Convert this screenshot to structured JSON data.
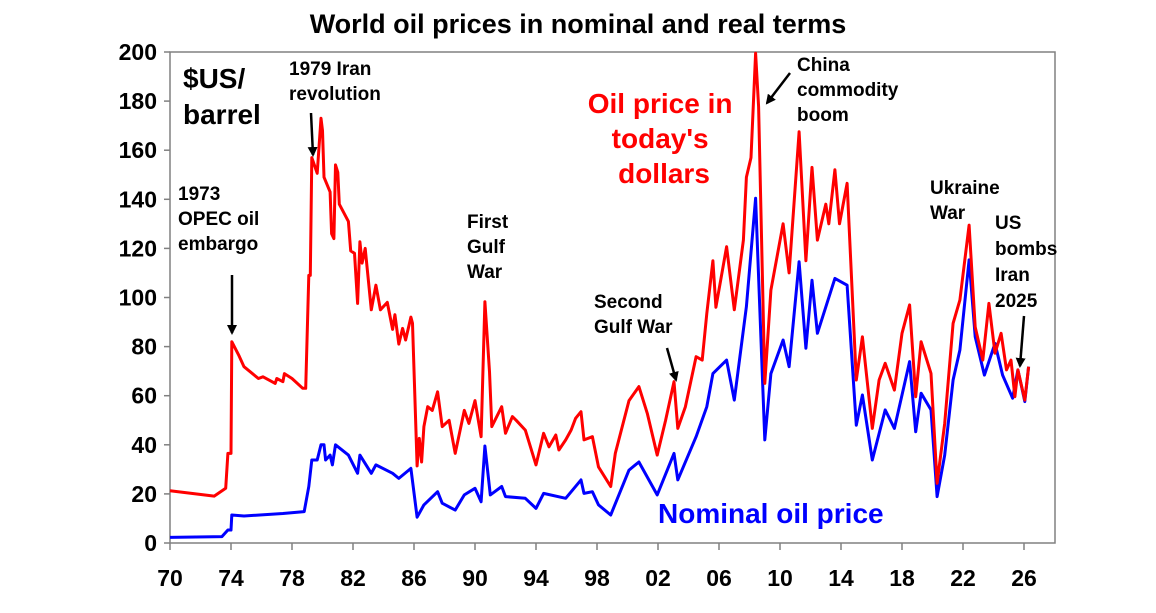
{
  "chart_data": {
    "type": "line",
    "title": "World oil prices in nominal and real terms",
    "ylabel": "$US/ barrel",
    "ylabel_lines": [
      "$US/",
      "barrel"
    ],
    "xlim": [
      1970,
      2028
    ],
    "ylim": [
      0,
      200
    ],
    "grid": false,
    "x_ticks": [
      1970,
      1974,
      1978,
      1982,
      1986,
      1990,
      1994,
      1998,
      2002,
      2006,
      2010,
      2014,
      2018,
      2022,
      2026
    ],
    "x_tick_labels": [
      "70",
      "74",
      "78",
      "82",
      "86",
      "90",
      "94",
      "98",
      "02",
      "06",
      "10",
      "14",
      "18",
      "22",
      "26"
    ],
    "y_ticks": [
      0,
      20,
      40,
      60,
      80,
      100,
      120,
      140,
      160,
      180,
      200
    ],
    "y_tick_labels": [
      "0",
      "20",
      "40",
      "60",
      "80",
      "100",
      "120",
      "140",
      "160",
      "180",
      "200"
    ],
    "series": [
      {
        "name": "Oil price in today's dollars",
        "label_lines": [
          "Oil price in",
          "today's",
          "dollars"
        ],
        "color": "#ff0000",
        "points": [
          [
            1970.0,
            21.3
          ],
          [
            1972.9,
            19.1
          ],
          [
            1973.65,
            22.3
          ],
          [
            1973.8,
            36.5
          ],
          [
            1974.0,
            36.5
          ],
          [
            1974.05,
            82
          ],
          [
            1974.5,
            76.6
          ],
          [
            1974.85,
            71.8
          ],
          [
            1975.8,
            67
          ],
          [
            1976.1,
            67.7
          ],
          [
            1976.9,
            65
          ],
          [
            1977.0,
            67
          ],
          [
            1977.4,
            65.7
          ],
          [
            1977.5,
            69
          ],
          [
            1978.0,
            67
          ],
          [
            1978.7,
            63
          ],
          [
            1978.9,
            63
          ],
          [
            1979.1,
            109
          ],
          [
            1979.2,
            109
          ],
          [
            1979.3,
            157
          ],
          [
            1979.65,
            150.6
          ],
          [
            1979.9,
            173
          ],
          [
            1980.0,
            168
          ],
          [
            1980.1,
            149
          ],
          [
            1980.5,
            143
          ],
          [
            1980.6,
            126
          ],
          [
            1980.75,
            124
          ],
          [
            1980.85,
            154
          ],
          [
            1981.0,
            151
          ],
          [
            1981.1,
            138
          ],
          [
            1981.7,
            131
          ],
          [
            1981.85,
            119
          ],
          [
            1982.1,
            118
          ],
          [
            1982.3,
            97.6
          ],
          [
            1982.45,
            122.7
          ],
          [
            1982.6,
            114
          ],
          [
            1982.8,
            120
          ],
          [
            1983.2,
            95
          ],
          [
            1983.5,
            105
          ],
          [
            1983.8,
            95
          ],
          [
            1984.25,
            98
          ],
          [
            1984.6,
            87
          ],
          [
            1984.75,
            93
          ],
          [
            1985.0,
            81
          ],
          [
            1985.25,
            87.4
          ],
          [
            1985.45,
            82.7
          ],
          [
            1985.8,
            92
          ],
          [
            1985.9,
            89.5
          ],
          [
            1986.2,
            31.4
          ],
          [
            1986.35,
            42.6
          ],
          [
            1986.5,
            33
          ],
          [
            1986.65,
            47.4
          ],
          [
            1986.9,
            55.5
          ],
          [
            1987.2,
            54
          ],
          [
            1987.55,
            61.6
          ],
          [
            1987.85,
            47.4
          ],
          [
            1988.3,
            50
          ],
          [
            1988.7,
            36.5
          ],
          [
            1989.05,
            46.7
          ],
          [
            1989.3,
            54
          ],
          [
            1989.6,
            48.7
          ],
          [
            1990.0,
            58
          ],
          [
            1990.4,
            43.3
          ],
          [
            1990.65,
            98.3
          ],
          [
            1990.95,
            69.8
          ],
          [
            1991.1,
            47.4
          ],
          [
            1991.75,
            55.5
          ],
          [
            1992.0,
            44.7
          ],
          [
            1992.45,
            51.5
          ],
          [
            1992.7,
            50
          ],
          [
            1993.3,
            46
          ],
          [
            1994.0,
            31.8
          ],
          [
            1994.5,
            44.7
          ],
          [
            1994.85,
            39.2
          ],
          [
            1995.3,
            44
          ],
          [
            1995.5,
            37.9
          ],
          [
            1995.95,
            42
          ],
          [
            1996.3,
            46
          ],
          [
            1996.6,
            50.8
          ],
          [
            1996.95,
            53.5
          ],
          [
            1997.15,
            42
          ],
          [
            1997.7,
            43.3
          ],
          [
            1998.1,
            31
          ],
          [
            1998.9,
            23
          ],
          [
            1999.2,
            36.5
          ],
          [
            2000.1,
            58
          ],
          [
            2000.75,
            63.7
          ],
          [
            2001.3,
            52.8
          ],
          [
            2001.95,
            35.8
          ],
          [
            2002.5,
            50
          ],
          [
            2003.05,
            65.7
          ],
          [
            2003.3,
            46.7
          ],
          [
            2003.8,
            55.5
          ],
          [
            2004.5,
            75.9
          ],
          [
            2004.9,
            74.5
          ],
          [
            2005.2,
            93.5
          ],
          [
            2005.6,
            115
          ],
          [
            2005.8,
            96
          ],
          [
            2006.5,
            120.7
          ],
          [
            2007.0,
            95
          ],
          [
            2007.6,
            123.4
          ],
          [
            2007.8,
            149
          ],
          [
            2008.1,
            157
          ],
          [
            2008.4,
            199.5
          ],
          [
            2008.6,
            177.7
          ],
          [
            2009.0,
            65
          ],
          [
            2009.4,
            103
          ],
          [
            2010.2,
            130
          ],
          [
            2010.6,
            110
          ],
          [
            2011.25,
            167.5
          ],
          [
            2011.7,
            115
          ],
          [
            2012.1,
            153
          ],
          [
            2012.45,
            123.4
          ],
          [
            2013.0,
            138
          ],
          [
            2013.2,
            130
          ],
          [
            2013.6,
            152
          ],
          [
            2013.9,
            130
          ],
          [
            2014.4,
            146.5
          ],
          [
            2015.0,
            66.4
          ],
          [
            2015.4,
            84
          ],
          [
            2016.05,
            46.7
          ],
          [
            2016.5,
            66.4
          ],
          [
            2016.9,
            73.2
          ],
          [
            2017.5,
            62.3
          ],
          [
            2018.0,
            85.4
          ],
          [
            2018.5,
            97
          ],
          [
            2018.9,
            59.6
          ],
          [
            2019.25,
            82
          ],
          [
            2019.9,
            69.1
          ],
          [
            2020.3,
            24.3
          ],
          [
            2020.8,
            48.7
          ],
          [
            2021.35,
            89.5
          ],
          [
            2021.8,
            99
          ],
          [
            2022.4,
            129.5
          ],
          [
            2022.8,
            88
          ],
          [
            2023.3,
            74.5
          ],
          [
            2023.7,
            97.6
          ],
          [
            2024.1,
            77.3
          ],
          [
            2024.5,
            85.4
          ],
          [
            2024.85,
            70.5
          ],
          [
            2025.15,
            74.5
          ],
          [
            2025.4,
            59.6
          ],
          [
            2025.6,
            70.5
          ],
          [
            2026.05,
            58.2
          ],
          [
            2026.3,
            71.8
          ]
        ]
      },
      {
        "name": "Nominal oil price",
        "color": "#0000ff",
        "points": [
          [
            1970.0,
            2.3
          ],
          [
            1973.4,
            2.6
          ],
          [
            1973.8,
            5.3
          ],
          [
            1974.0,
            5.3
          ],
          [
            1974.05,
            11.4
          ],
          [
            1974.85,
            11
          ],
          [
            1977.4,
            12
          ],
          [
            1978.8,
            12.8
          ],
          [
            1979.1,
            23
          ],
          [
            1979.3,
            33.8
          ],
          [
            1979.65,
            33.8
          ],
          [
            1979.9,
            40
          ],
          [
            1980.1,
            40
          ],
          [
            1980.2,
            33.8
          ],
          [
            1980.5,
            35.8
          ],
          [
            1980.65,
            31.8
          ],
          [
            1980.85,
            40
          ],
          [
            1981.7,
            35.8
          ],
          [
            1982.3,
            28.4
          ],
          [
            1982.45,
            35.8
          ],
          [
            1983.2,
            28.4
          ],
          [
            1983.5,
            31.8
          ],
          [
            1984.6,
            28.4
          ],
          [
            1985.0,
            26.3
          ],
          [
            1985.8,
            30.4
          ],
          [
            1986.2,
            10.5
          ],
          [
            1986.65,
            15.5
          ],
          [
            1987.55,
            20.9
          ],
          [
            1987.85,
            16.2
          ],
          [
            1988.7,
            13.4
          ],
          [
            1989.3,
            19.6
          ],
          [
            1990.0,
            22.3
          ],
          [
            1990.4,
            16.8
          ],
          [
            1990.65,
            39.5
          ],
          [
            1991.0,
            19.6
          ],
          [
            1991.75,
            23
          ],
          [
            1992.0,
            18.9
          ],
          [
            1993.3,
            18.2
          ],
          [
            1994.0,
            14.1
          ],
          [
            1994.5,
            20.2
          ],
          [
            1995.95,
            18.2
          ],
          [
            1996.95,
            25.7
          ],
          [
            1997.15,
            20.2
          ],
          [
            1997.7,
            20.9
          ],
          [
            1998.1,
            15.5
          ],
          [
            1998.9,
            11.4
          ],
          [
            2000.1,
            29.7
          ],
          [
            2000.75,
            33
          ],
          [
            2001.95,
            19.6
          ],
          [
            2003.05,
            36.5
          ],
          [
            2003.3,
            25.7
          ],
          [
            2004.5,
            43.3
          ],
          [
            2005.2,
            55.5
          ],
          [
            2005.6,
            69
          ],
          [
            2006.5,
            74.5
          ],
          [
            2007.0,
            58.2
          ],
          [
            2007.8,
            96.3
          ],
          [
            2008.4,
            140.4
          ],
          [
            2009.0,
            42
          ],
          [
            2009.4,
            69
          ],
          [
            2010.2,
            82.7
          ],
          [
            2010.6,
            71.8
          ],
          [
            2011.25,
            114.6
          ],
          [
            2011.7,
            79.3
          ],
          [
            2012.1,
            107
          ],
          [
            2012.45,
            85.4
          ],
          [
            2013.6,
            107.8
          ],
          [
            2014.4,
            105
          ],
          [
            2015.0,
            48
          ],
          [
            2015.4,
            60.3
          ],
          [
            2016.05,
            33.8
          ],
          [
            2016.9,
            54.2
          ],
          [
            2017.5,
            46.7
          ],
          [
            2018.5,
            73.9
          ],
          [
            2018.9,
            45.3
          ],
          [
            2019.25,
            61
          ],
          [
            2019.9,
            54.2
          ],
          [
            2020.3,
            18.9
          ],
          [
            2020.8,
            35.8
          ],
          [
            2021.35,
            66.4
          ],
          [
            2021.8,
            78.6
          ],
          [
            2022.4,
            115.3
          ],
          [
            2022.8,
            84
          ],
          [
            2023.4,
            68.4
          ],
          [
            2024.1,
            81.3
          ],
          [
            2024.6,
            68.4
          ],
          [
            2025.25,
            59
          ],
          [
            2025.6,
            70.5
          ],
          [
            2026.05,
            57.6
          ],
          [
            2026.3,
            71.8
          ]
        ]
      }
    ],
    "annotations": {
      "opec": [
        "1973",
        "OPEC oil",
        "embargo"
      ],
      "iran": [
        "1979 Iran",
        "revolution"
      ],
      "gulf1": [
        "First",
        "Gulf",
        "War"
      ],
      "gulf2": [
        "Second",
        "Gulf War"
      ],
      "china": [
        "China",
        "commodity",
        "boom"
      ],
      "ukraine": [
        "Ukraine",
        "War"
      ],
      "usbombs": [
        "US",
        "bombs",
        "Iran",
        "2025"
      ]
    }
  }
}
